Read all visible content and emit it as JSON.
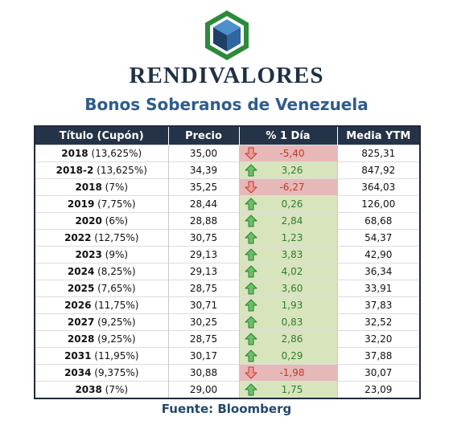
{
  "brand": {
    "name": "RENDIVALORES"
  },
  "title": "Bonos Soberanos de Venezuela",
  "columns": {
    "title": "Título (Cupón)",
    "price": "Precio",
    "change": "% 1 Día",
    "ytm": "Media YTM"
  },
  "rows": [
    {
      "year": "2018",
      "coupon": " (13,625%)",
      "price": "35,00",
      "change": "-5,40",
      "direction": "down",
      "ytm": "825,31"
    },
    {
      "year": "2018-2",
      "coupon": " (13,625%)",
      "price": "34,39",
      "change": "3,26",
      "direction": "up",
      "ytm": "847,92"
    },
    {
      "year": "2018",
      "coupon": " (7%)",
      "price": "35,25",
      "change": "-6,27",
      "direction": "down",
      "ytm": "364,03"
    },
    {
      "year": "2019",
      "coupon": " (7,75%)",
      "price": "28,44",
      "change": "0,26",
      "direction": "up",
      "ytm": "126,00"
    },
    {
      "year": "2020",
      "coupon": " (6%)",
      "price": "28,88",
      "change": "2,84",
      "direction": "up",
      "ytm": "68,68"
    },
    {
      "year": "2022",
      "coupon": " (12,75%)",
      "price": "30,75",
      "change": "1,23",
      "direction": "up",
      "ytm": "54,37"
    },
    {
      "year": "2023",
      "coupon": " (9%)",
      "price": "29,13",
      "change": "3,83",
      "direction": "up",
      "ytm": "42,90"
    },
    {
      "year": "2024",
      "coupon": " (8,25%)",
      "price": "29,13",
      "change": "4,02",
      "direction": "up",
      "ytm": "36,34"
    },
    {
      "year": "2025",
      "coupon": " (7,65%)",
      "price": "28,75",
      "change": "3,60",
      "direction": "up",
      "ytm": "33,91"
    },
    {
      "year": "2026",
      "coupon": " (11,75%)",
      "price": "30,71",
      "change": "1,93",
      "direction": "up",
      "ytm": "37,83"
    },
    {
      "year": "2027",
      "coupon": " (9,25%)",
      "price": "30,25",
      "change": "0,83",
      "direction": "up",
      "ytm": "32,52"
    },
    {
      "year": "2028",
      "coupon": " (9,25%)",
      "price": "28,75",
      "change": "2,86",
      "direction": "up",
      "ytm": "32,20"
    },
    {
      "year": "2031",
      "coupon": " (11,95%)",
      "price": "30,17",
      "change": "0,29",
      "direction": "up",
      "ytm": "37,88"
    },
    {
      "year": "2034",
      "coupon": " (9,375%)",
      "price": "30,88",
      "change": "-1,98",
      "direction": "down",
      "ytm": "30,07"
    },
    {
      "year": "2038",
      "coupon": " (7%)",
      "price": "29,00",
      "change": "1,75",
      "direction": "up",
      "ytm": "23,09"
    }
  ],
  "source": "Fuente: Bloomberg",
  "colors": {
    "up": "#2e7d32",
    "down": "#c0392b",
    "up_bg": "#d8e4bc",
    "down_bg": "#e6b8b7",
    "header_bg": "#243347",
    "title": "#2e5c8c"
  }
}
